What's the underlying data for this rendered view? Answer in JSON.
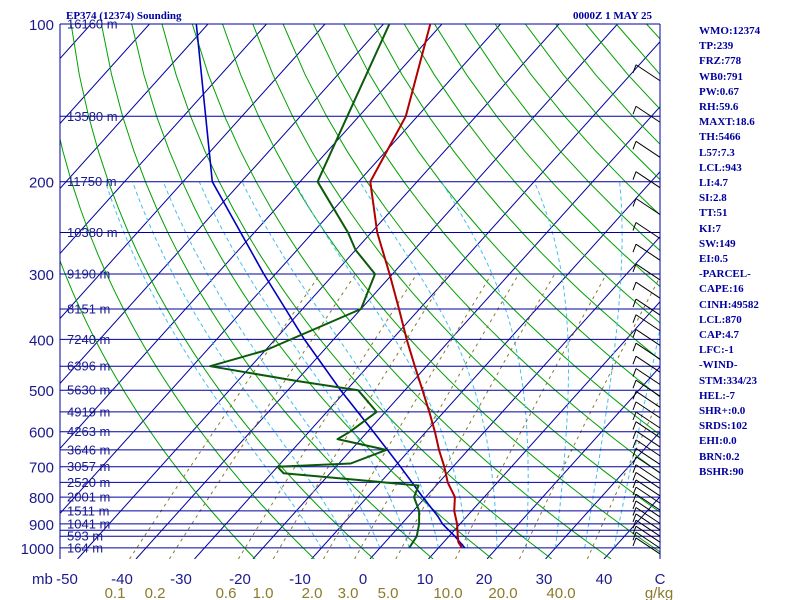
{
  "header": {
    "station_title": "EP374 (12374) Sounding",
    "time_title": "0000Z  1 MAY 25"
  },
  "chart_data": {
    "type": "skew-t log-p sounding",
    "pressure_levels": [
      100,
      150,
      200,
      250,
      300,
      350,
      400,
      450,
      500,
      550,
      600,
      650,
      700,
      750,
      800,
      850,
      900,
      925,
      950,
      1000
    ],
    "pressure_labels": [
      {
        "p": 100,
        "label": "100"
      },
      {
        "p": 200,
        "label": "200"
      },
      {
        "p": 300,
        "label": "300"
      },
      {
        "p": 400,
        "label": "400"
      },
      {
        "p": 500,
        "label": "500"
      },
      {
        "p": 600,
        "label": "600"
      },
      {
        "p": 700,
        "label": "700"
      },
      {
        "p": 800,
        "label": "800"
      },
      {
        "p": 900,
        "label": "900"
      },
      {
        "p": 1000,
        "label": "1000"
      }
    ],
    "pressure_unit_label": "mb",
    "height_labels": [
      {
        "p": 100,
        "label": "16160 m"
      },
      {
        "p": 150,
        "label": "13580 m"
      },
      {
        "p": 200,
        "label": "11750 m"
      },
      {
        "p": 250,
        "label": "10380 m"
      },
      {
        "p": 300,
        "label": "9190 m"
      },
      {
        "p": 350,
        "label": "8151 m"
      },
      {
        "p": 400,
        "label": "7240 m"
      },
      {
        "p": 450,
        "label": "6396 m"
      },
      {
        "p": 500,
        "label": "5630 m"
      },
      {
        "p": 550,
        "label": "4919 m"
      },
      {
        "p": 600,
        "label": "4263 m"
      },
      {
        "p": 650,
        "label": "3646 m"
      },
      {
        "p": 700,
        "label": "3057 m"
      },
      {
        "p": 750,
        "label": "2520 m"
      },
      {
        "p": 800,
        "label": "2001 m"
      },
      {
        "p": 850,
        "label": "1511 m"
      },
      {
        "p": 900,
        "label": "1041 m"
      },
      {
        "p": 950,
        "label": "593 m"
      },
      {
        "p": 1000,
        "label": "164 m"
      }
    ],
    "temperature_ticks": [
      "-50",
      "-40",
      "-30",
      "-20",
      "-10",
      "0",
      "10",
      "20",
      "30",
      "40",
      "C"
    ],
    "mixing_ratio_labels": [
      "0.1",
      "0.2",
      "0.6",
      "1.0",
      "2.0",
      "3.0",
      "5.0",
      "10.0",
      "20.0",
      "40.0",
      "g/kg"
    ],
    "temperature_profile_C": [
      {
        "p": 1000,
        "t": 14.0
      },
      {
        "p": 975,
        "t": 12.5
      },
      {
        "p": 950,
        "t": 11.5
      },
      {
        "p": 925,
        "t": 10.5
      },
      {
        "p": 900,
        "t": 9.5
      },
      {
        "p": 850,
        "t": 7.0
      },
      {
        "p": 800,
        "t": 5.0
      },
      {
        "p": 750,
        "t": 1.5
      },
      {
        "p": 700,
        "t": -1.5
      },
      {
        "p": 650,
        "t": -5.0
      },
      {
        "p": 600,
        "t": -8.5
      },
      {
        "p": 550,
        "t": -12.5
      },
      {
        "p": 500,
        "t": -17.0
      },
      {
        "p": 450,
        "t": -22.0
      },
      {
        "p": 400,
        "t": -27.5
      },
      {
        "p": 350,
        "t": -33.5
      },
      {
        "p": 300,
        "t": -40.5
      },
      {
        "p": 250,
        "t": -49.0
      },
      {
        "p": 200,
        "t": -58.0
      },
      {
        "p": 150,
        "t": -62.0
      },
      {
        "p": 100,
        "t": -72.0
      }
    ],
    "dewpoint_profile_C": [
      {
        "p": 1000,
        "t": 5.0
      },
      {
        "p": 950,
        "t": 4.5
      },
      {
        "p": 900,
        "t": 3.0
      },
      {
        "p": 850,
        "t": 1.0
      },
      {
        "p": 800,
        "t": -2.0
      },
      {
        "p": 760,
        "t": -3.0
      },
      {
        "p": 720,
        "t": -28.0
      },
      {
        "p": 700,
        "t": -30.0
      },
      {
        "p": 690,
        "t": -18.0
      },
      {
        "p": 650,
        "t": -14.0
      },
      {
        "p": 620,
        "t": -24.0
      },
      {
        "p": 600,
        "t": -23.0
      },
      {
        "p": 550,
        "t": -21.5
      },
      {
        "p": 500,
        "t": -28.0
      },
      {
        "p": 480,
        "t": -40.0
      },
      {
        "p": 450,
        "t": -57.0
      },
      {
        "p": 420,
        "t": -50.0
      },
      {
        "p": 350,
        "t": -40.0
      },
      {
        "p": 300,
        "t": -43.0
      },
      {
        "p": 270,
        "t": -50.0
      },
      {
        "p": 250,
        "t": -54.0
      },
      {
        "p": 200,
        "t": -67.0
      },
      {
        "p": 150,
        "t": -72.0
      },
      {
        "p": 100,
        "t": -79.0
      }
    ],
    "parcel_profile_C": [
      {
        "p": 1000,
        "t": 14.5
      },
      {
        "p": 950,
        "t": 11.0
      },
      {
        "p": 900,
        "t": 7.0
      },
      {
        "p": 870,
        "t": 5.0
      },
      {
        "p": 800,
        "t": -0.5
      },
      {
        "p": 700,
        "t": -9.0
      },
      {
        "p": 600,
        "t": -19.0
      },
      {
        "p": 500,
        "t": -31.0
      },
      {
        "p": 400,
        "t": -45.0
      },
      {
        "p": 300,
        "t": -62.0
      },
      {
        "p": 200,
        "t": -85.0
      },
      {
        "p": 100,
        "t": -112.0
      }
    ],
    "wind_levels_mb": [
      125,
      150,
      175,
      200,
      225,
      250,
      275,
      300,
      325,
      350,
      375,
      400,
      425,
      450,
      475,
      500,
      525,
      550,
      575,
      600,
      625,
      650,
      675,
      700,
      725,
      750,
      775,
      800,
      825,
      850,
      875,
      900,
      925,
      950,
      975,
      1000
    ]
  },
  "indices": [
    "WMO:12374",
    "TP:239",
    "FRZ:778",
    "WB0:791",
    "PW:0.67",
    "RH:59.6",
    "MAXT:18.6",
    "TH:5466",
    "L57:7.3",
    "LCL:943",
    "LI:4.7",
    "SI:2.8",
    "TT:51",
    "KI:7",
    "SW:149",
    "EI:0.5",
    "-PARCEL-",
    "CAPE:16",
    "CINH:49582",
    "LCL:870",
    "CAP:4.7",
    "LFC:-1",
    "-WIND-",
    "STM:334/23",
    "HEL:-7",
    "SHR+:0.0",
    "SRDS:102",
    "EHI:0.0",
    "BRN:0.2",
    "BSHR:90"
  ],
  "colors": {
    "isobar": "#0000a0",
    "isotherm": "#0000a0",
    "dry_adiabat": "#00a000",
    "moist_adiabat": "#40c0f0",
    "mixing_ratio": "#8a7a2a",
    "temperature": "#b00000",
    "dewpoint": "#0a5a0a",
    "parcel": "#0000c0"
  }
}
